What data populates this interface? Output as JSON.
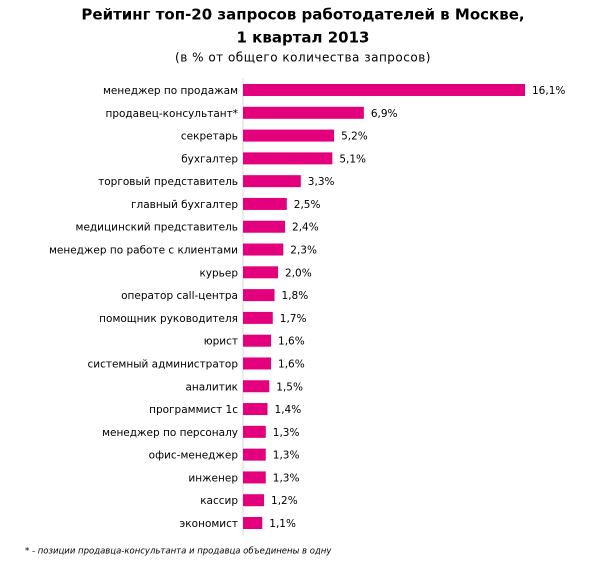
{
  "chart_data": {
    "type": "hbar",
    "title_lines": [
      "Рейтинг топ-20 запросов работодателей в Москве,",
      "1 квартал 2013"
    ],
    "subtitle": "(в % от общего количества запросов)",
    "footnote": "* - позиции продавца-консультанта и продавца объединены в одну",
    "color": "#e4007c",
    "categories": [
      "менеджер  по продажам",
      "продавец-консультант*",
      "секретарь",
      "бухгалтер",
      "торговый представитель",
      "главный бухгалтер",
      "медицинский  представитель",
      "менеджер  по работе с клиентами",
      "курьер",
      "оператор call-центра",
      "помощник руководителя",
      "юрист",
      "системный администратор",
      "аналитик",
      "программист 1с",
      "менеджер  по персоналу",
      "офис-менеджер",
      "инженер",
      "кассир",
      "экономист"
    ],
    "values": [
      16.1,
      6.9,
      5.2,
      5.1,
      3.3,
      2.5,
      2.4,
      2.3,
      2.0,
      1.8,
      1.7,
      1.6,
      1.6,
      1.5,
      1.4,
      1.3,
      1.3,
      1.3,
      1.2,
      1.1
    ],
    "value_labels": [
      "16,1%",
      "6,9%",
      "5,2%",
      "5,1%",
      "3,3%",
      "2,5%",
      "2,4%",
      "2,3%",
      "2,0%",
      "1,8%",
      "1,7%",
      "1,6%",
      "1,6%",
      "1,5%",
      "1,4%",
      "1,3%",
      "1,3%",
      "1,3%",
      "1,2%",
      "1,1%"
    ]
  }
}
